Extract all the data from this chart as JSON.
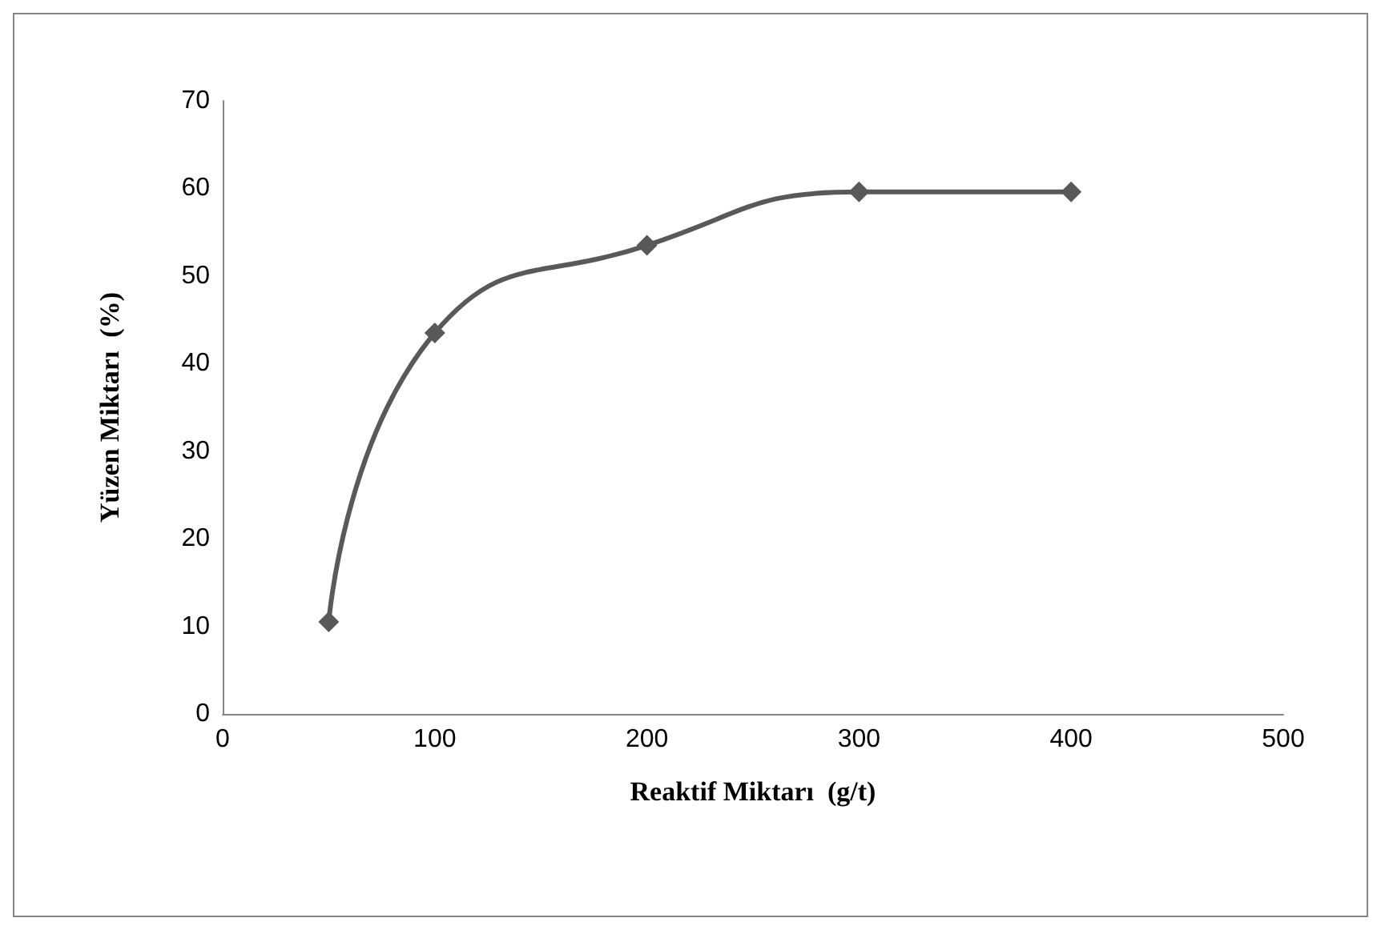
{
  "chart_data": {
    "type": "line",
    "xlabel": "Reaktif Miktarı  (g/t)",
    "ylabel": "Yüzen Miktarı  (%)",
    "x": [
      50,
      100,
      200,
      300,
      400
    ],
    "series": [
      {
        "color": "#595959",
        "values": [
          10.5,
          43.5,
          53.5,
          59.6,
          59.6
        ]
      }
    ],
    "xlim": [
      0,
      500
    ],
    "xticks": [
      0,
      100,
      200,
      300,
      400,
      500
    ],
    "ylim": [
      0,
      70
    ],
    "yticks": [
      0,
      10,
      20,
      30,
      40,
      50,
      60,
      70
    ],
    "grid": false,
    "marker": "diamond",
    "line_style": "solid"
  }
}
